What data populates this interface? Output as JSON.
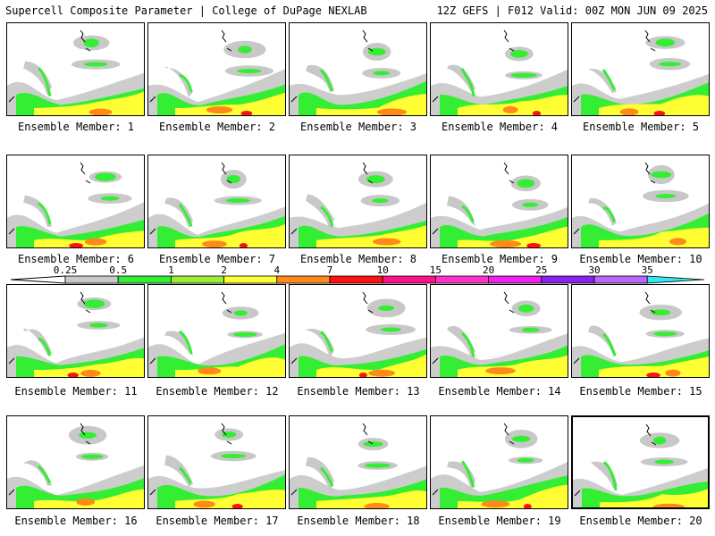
{
  "header": {
    "left": "Supercell Composite Parameter | College of DuPage NEXLAB",
    "right": "12Z GEFS | F012 Valid: 00Z MON JUN 09 2025"
  },
  "member_prefix": "Ensemble Member: ",
  "selected_member": 20,
  "members": [
    1,
    2,
    3,
    4,
    5,
    6,
    7,
    8,
    9,
    10,
    11,
    12,
    13,
    14,
    15,
    16,
    17,
    18,
    19,
    20
  ],
  "colorbar": {
    "ticks": [
      "0.25",
      "0.5",
      "1",
      "2",
      "4",
      "7",
      "10",
      "15",
      "20",
      "25",
      "30",
      "35"
    ],
    "colors": [
      "#c8c8c8",
      "#33ee33",
      "#99ee33",
      "#ffff33",
      "#ff8a1a",
      "#ff1111",
      "#ff1188",
      "#ff33cc",
      "#ee22ee",
      "#8822ee",
      "#bb66ff",
      "#33e8ee"
    ]
  }
}
